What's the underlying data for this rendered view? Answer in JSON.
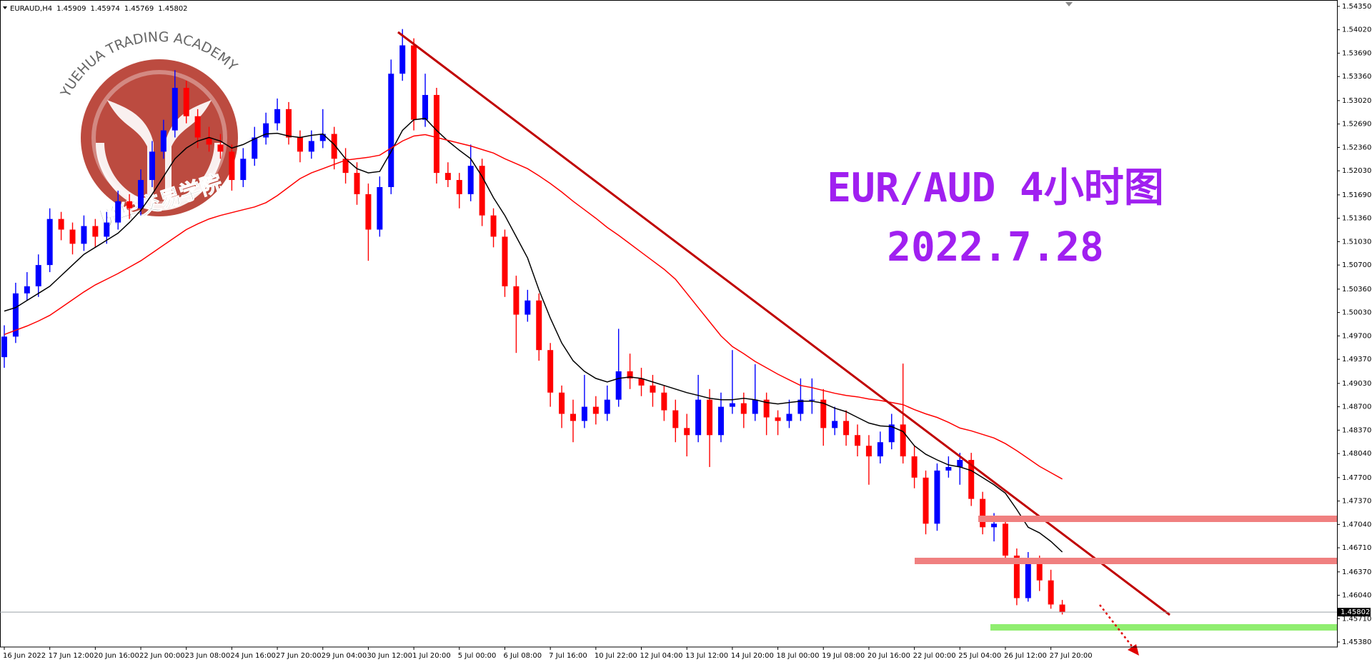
{
  "header": {
    "symbol": "EURAUD,H4"
  },
  "annotations": [
    "EUR/AUD 4小时图",
    "2022.7.28"
  ],
  "watermark": {
    "text_en": "YUEHUA TRADING ACADEMY",
    "text_cn": "悦华交易学院"
  },
  "chart_data": {
    "type": "candlestick",
    "categories": [
      "16 Jun 2022",
      null,
      null,
      null,
      "17 Jun 12:00",
      null,
      null,
      null,
      "20 Jun 16:00",
      null,
      null,
      null,
      "22 Jun 00:00",
      null,
      null,
      null,
      "23 Jun 08:00",
      null,
      null,
      null,
      "24 Jun 16:00",
      null,
      null,
      null,
      "27 Jun 20:00",
      null,
      null,
      null,
      "29 Jun 04:00",
      null,
      null,
      null,
      "30 Jun 12:00",
      null,
      null,
      null,
      "1 Jul 20:00",
      null,
      null,
      null,
      "5 Jul 00:00",
      null,
      null,
      null,
      "6 Jul 08:00",
      null,
      null,
      null,
      "7 Jul 16:00",
      null,
      null,
      null,
      "10 Jul 22:00",
      null,
      null,
      null,
      "12 Jul 04:00",
      null,
      null,
      null,
      "13 Jul 12:00",
      null,
      null,
      null,
      "14 Jul 20:00",
      null,
      null,
      null,
      "18 Jul 00:00",
      null,
      null,
      null,
      "19 Jul 08:00",
      null,
      null,
      null,
      "20 Jul 16:00",
      null,
      null,
      null,
      "22 Jul 00:00",
      null,
      null,
      null,
      "25 Jul 04:00",
      null,
      null,
      null,
      "26 Jul 12:00",
      null,
      null,
      null,
      "27 Jul 20:00",
      null
    ],
    "open": [
      1.494,
      1.4969,
      1.503,
      1.504,
      1.507,
      1.5135,
      1.512,
      1.51,
      1.5125,
      1.511,
      1.513,
      1.516,
      1.515,
      1.519,
      1.523,
      1.526,
      1.532,
      1.528,
      1.525,
      1.524,
      1.523,
      1.519,
      1.522,
      1.525,
      1.527,
      1.529,
      1.525,
      1.523,
      1.5245,
      1.5255,
      1.522,
      1.52,
      1.517,
      1.512,
      1.518,
      1.534,
      1.538,
      1.5275,
      1.531,
      1.52,
      1.519,
      1.517,
      1.521,
      1.514,
      1.511,
      1.504,
      1.5,
      1.502,
      1.495,
      1.489,
      1.486,
      1.485,
      1.487,
      1.486,
      1.488,
      1.492,
      1.491,
      1.49,
      1.489,
      1.4865,
      1.484,
      1.483,
      1.488,
      1.483,
      1.487,
      1.4875,
      1.486,
      1.488,
      1.4855,
      1.485,
      1.486,
      1.488,
      1.488,
      1.484,
      1.485,
      1.483,
      1.4815,
      1.48,
      1.482,
      1.4845,
      1.48,
      1.477,
      1.4705,
      1.478,
      1.4785,
      1.4795,
      1.474,
      1.47,
      1.4705,
      1.466,
      1.46,
      1.465,
      1.4625,
      1.45909
    ],
    "high": [
      1.4985,
      1.5045,
      1.506,
      1.5085,
      1.515,
      1.5145,
      1.513,
      1.514,
      1.5135,
      1.5145,
      1.5175,
      1.517,
      1.5205,
      1.5245,
      1.5275,
      1.5345,
      1.533,
      1.529,
      1.5265,
      1.5255,
      1.524,
      1.5235,
      1.5265,
      1.5285,
      1.5305,
      1.53,
      1.526,
      1.526,
      1.529,
      1.5265,
      1.5235,
      1.5215,
      1.5185,
      1.5195,
      1.536,
      1.5403,
      1.539,
      1.534,
      1.532,
      1.5215,
      1.52,
      1.524,
      1.522,
      1.515,
      1.512,
      1.5055,
      1.5035,
      1.503,
      1.496,
      1.49,
      1.488,
      1.4915,
      1.4885,
      1.49,
      1.498,
      1.4945,
      1.4925,
      1.4915,
      1.49,
      1.488,
      1.486,
      1.4915,
      1.4895,
      1.489,
      1.495,
      1.489,
      1.493,
      1.489,
      1.4865,
      1.488,
      1.491,
      1.491,
      1.4895,
      1.487,
      1.4865,
      1.4845,
      1.483,
      1.4835,
      1.486,
      1.4931,
      1.4815,
      1.478,
      1.479,
      1.48,
      1.4805,
      1.4805,
      1.475,
      1.472,
      1.4715,
      1.467,
      1.4665,
      1.466,
      1.464,
      1.45974
    ],
    "low": [
      1.4925,
      1.496,
      1.502,
      1.5025,
      1.506,
      1.5105,
      1.5085,
      1.509,
      1.5095,
      1.51,
      1.512,
      1.5135,
      1.514,
      1.518,
      1.522,
      1.525,
      1.527,
      1.5235,
      1.523,
      1.522,
      1.5175,
      1.518,
      1.521,
      1.524,
      1.526,
      1.524,
      1.5215,
      1.522,
      1.5235,
      1.5205,
      1.5185,
      1.5155,
      1.5076,
      1.511,
      1.517,
      1.533,
      1.526,
      1.5265,
      1.5185,
      1.518,
      1.515,
      1.516,
      1.5125,
      1.5095,
      1.5025,
      1.4946,
      1.499,
      1.4935,
      1.487,
      1.484,
      1.482,
      1.484,
      1.4845,
      1.485,
      1.487,
      1.4895,
      1.4885,
      1.487,
      1.485,
      1.482,
      1.48,
      1.482,
      1.4785,
      1.482,
      1.486,
      1.484,
      1.485,
      1.483,
      1.483,
      1.484,
      1.485,
      1.486,
      1.4815,
      1.483,
      1.4815,
      1.48,
      1.476,
      1.479,
      1.481,
      1.479,
      1.4755,
      1.469,
      1.4695,
      1.477,
      1.476,
      1.473,
      1.469,
      1.468,
      1.465,
      1.459,
      1.4595,
      1.461,
      1.4585,
      1.45769
    ],
    "close": [
      1.4969,
      1.503,
      1.504,
      1.507,
      1.5135,
      1.512,
      1.51,
      1.5125,
      1.511,
      1.513,
      1.516,
      1.515,
      1.519,
      1.523,
      1.526,
      1.532,
      1.528,
      1.525,
      1.524,
      1.523,
      1.519,
      1.522,
      1.525,
      1.527,
      1.529,
      1.525,
      1.523,
      1.5245,
      1.5255,
      1.522,
      1.52,
      1.517,
      1.512,
      1.518,
      1.534,
      1.538,
      1.5275,
      1.531,
      1.52,
      1.519,
      1.517,
      1.521,
      1.514,
      1.511,
      1.504,
      1.5,
      1.502,
      1.495,
      1.489,
      1.486,
      1.485,
      1.487,
      1.486,
      1.488,
      1.492,
      1.491,
      1.49,
      1.489,
      1.4865,
      1.484,
      1.483,
      1.488,
      1.483,
      1.487,
      1.4875,
      1.486,
      1.488,
      1.4855,
      1.485,
      1.486,
      1.488,
      1.488,
      1.484,
      1.485,
      1.483,
      1.4815,
      1.48,
      1.482,
      1.4845,
      1.48,
      1.477,
      1.4705,
      1.478,
      1.4785,
      1.4795,
      1.474,
      1.47,
      1.4705,
      1.466,
      1.46,
      1.465,
      1.4625,
      1.4591,
      1.45802
    ],
    "colors": {
      "up": "#0000ff",
      "down": "#ff0000"
    },
    "moving_averages": [
      {
        "color": "#000000",
        "values": [
          1.5005,
          1.501,
          1.502,
          1.503,
          1.504,
          1.5055,
          1.507,
          1.5085,
          1.5095,
          1.5105,
          1.5115,
          1.513,
          1.5147,
          1.517,
          1.5195,
          1.522,
          1.5235,
          1.5245,
          1.525,
          1.5245,
          1.5235,
          1.524,
          1.5248,
          1.5255,
          1.5256,
          1.5252,
          1.525,
          1.5253,
          1.5255,
          1.524,
          1.522,
          1.5206,
          1.52,
          1.5202,
          1.523,
          1.526,
          1.5275,
          1.5277,
          1.526,
          1.5245,
          1.5232,
          1.522,
          1.5195,
          1.5165,
          1.514,
          1.511,
          1.508,
          1.5035,
          1.4995,
          1.496,
          1.4935,
          1.492,
          1.491,
          1.4905,
          1.491,
          1.4912,
          1.491,
          1.4905,
          1.49,
          1.4895,
          1.489,
          1.4886,
          1.4882,
          1.488,
          1.488,
          1.4882,
          1.488,
          1.4876,
          1.4874,
          1.4876,
          1.4878,
          1.4878,
          1.4875,
          1.4868,
          1.4863,
          1.4855,
          1.4847,
          1.4843,
          1.4842,
          1.4835,
          1.4815,
          1.4803,
          1.4795,
          1.4788,
          1.4785,
          1.478,
          1.477,
          1.476,
          1.4748,
          1.4725,
          1.47,
          1.4692,
          1.468,
          1.4665
        ]
      },
      {
        "color": "#ff0000",
        "values": [
          1.4972,
          1.4978,
          1.4984,
          1.4991,
          1.4999,
          1.501,
          1.5021,
          1.5032,
          1.5042,
          1.505,
          1.5058,
          1.5067,
          1.5076,
          1.5087,
          1.5098,
          1.5109,
          1.512,
          1.5128,
          1.5135,
          1.514,
          1.5144,
          1.5148,
          1.5152,
          1.5158,
          1.5168,
          1.518,
          1.5192,
          1.52,
          1.5206,
          1.5212,
          1.5218,
          1.522,
          1.5222,
          1.5225,
          1.5235,
          1.5245,
          1.5252,
          1.5254,
          1.525,
          1.5246,
          1.5242,
          1.5238,
          1.5233,
          1.5228,
          1.522,
          1.5213,
          1.5206,
          1.5196,
          1.5185,
          1.5173,
          1.516,
          1.5148,
          1.5136,
          1.5123,
          1.5112,
          1.51,
          1.5088,
          1.5076,
          1.5064,
          1.505,
          1.503,
          1.501,
          1.499,
          1.497,
          1.4955,
          1.4945,
          1.4934,
          1.4925,
          1.4916,
          1.4908,
          1.49,
          1.4897,
          1.4893,
          1.4889,
          1.4886,
          1.4884,
          1.4881,
          1.4879,
          1.4876,
          1.4873,
          1.4866,
          1.486,
          1.4855,
          1.4848,
          1.484,
          1.4836,
          1.4831,
          1.4826,
          1.4818,
          1.4808,
          1.4797,
          1.4786,
          1.4777,
          1.4768
        ]
      }
    ],
    "ylim": [
      1.4531,
      1.5444
    ],
    "yticks": [
      {
        "value": 1.5435,
        "label": "1.54350"
      },
      {
        "value": 1.5402,
        "label": "1.54020"
      },
      {
        "value": 1.5369,
        "label": "1.53690"
      },
      {
        "value": 1.5336,
        "label": "1.53360"
      },
      {
        "value": 1.5302,
        "label": "1.53020"
      },
      {
        "value": 1.5269,
        "label": "1.52690"
      },
      {
        "value": 1.5236,
        "label": "1.52360"
      },
      {
        "value": 1.5203,
        "label": "1.52030"
      },
      {
        "value": 1.5169,
        "label": "1.51690"
      },
      {
        "value": 1.5136,
        "label": "1.51360"
      },
      {
        "value": 1.5103,
        "label": "1.51030"
      },
      {
        "value": 1.507,
        "label": "1.50700"
      },
      {
        "value": 1.5036,
        "label": "1.50360"
      },
      {
        "value": 1.5003,
        "label": "1.50030"
      },
      {
        "value": 1.497,
        "label": "1.49700"
      },
      {
        "value": 1.4937,
        "label": "1.49370"
      },
      {
        "value": 1.4903,
        "label": "1.49030"
      },
      {
        "value": 1.487,
        "label": "1.48700"
      },
      {
        "value": 1.4837,
        "label": "1.48370"
      },
      {
        "value": 1.4804,
        "label": "1.48040"
      },
      {
        "value": 1.477,
        "label": "1.47700"
      },
      {
        "value": 1.4737,
        "label": "1.47370"
      },
      {
        "value": 1.4704,
        "label": "1.47040"
      },
      {
        "value": 1.4671,
        "label": "1.46710"
      },
      {
        "value": 1.4637,
        "label": "1.46370"
      },
      {
        "value": 1.4604,
        "label": "1.46040"
      },
      {
        "value": 1.4571,
        "label": "1.45710"
      },
      {
        "value": 1.4538,
        "label": "1.45380"
      }
    ],
    "grid": false
  }
}
